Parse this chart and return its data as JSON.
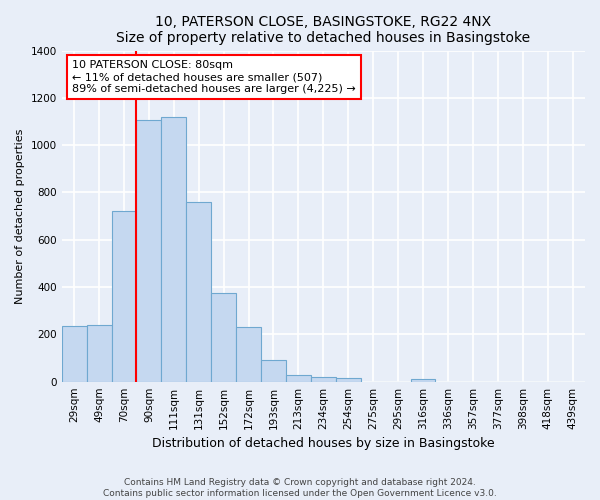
{
  "title": "10, PATERSON CLOSE, BASINGSTOKE, RG22 4NX",
  "subtitle": "Size of property relative to detached houses in Basingstoke",
  "xlabel": "Distribution of detached houses by size in Basingstoke",
  "ylabel": "Number of detached properties",
  "bar_labels": [
    "29sqm",
    "49sqm",
    "70sqm",
    "90sqm",
    "111sqm",
    "131sqm",
    "152sqm",
    "172sqm",
    "193sqm",
    "213sqm",
    "234sqm",
    "254sqm",
    "275sqm",
    "295sqm",
    "316sqm",
    "336sqm",
    "357sqm",
    "377sqm",
    "398sqm",
    "418sqm",
    "439sqm"
  ],
  "bar_values": [
    235,
    240,
    720,
    1105,
    1120,
    760,
    375,
    230,
    90,
    30,
    20,
    15,
    0,
    0,
    10,
    0,
    0,
    0,
    0,
    0,
    0
  ],
  "bar_color": "#c5d8f0",
  "bar_edge_color": "#6fa8d0",
  "vline_color": "red",
  "ylim": [
    0,
    1400
  ],
  "yticks": [
    0,
    200,
    400,
    600,
    800,
    1000,
    1200,
    1400
  ],
  "annotation_title": "10 PATERSON CLOSE: 80sqm",
  "annotation_line1": "← 11% of detached houses are smaller (507)",
  "annotation_line2": "89% of semi-detached houses are larger (4,225) →",
  "annotation_box_color": "white",
  "annotation_box_edgecolor": "red",
  "footer_line1": "Contains HM Land Registry data © Crown copyright and database right 2024.",
  "footer_line2": "Contains public sector information licensed under the Open Government Licence v3.0.",
  "background_color": "#e8eef8",
  "plot_background": "#e8eef8",
  "grid_color": "white",
  "title_fontsize": 10,
  "xlabel_fontsize": 9,
  "ylabel_fontsize": 8,
  "tick_fontsize": 7.5,
  "footer_fontsize": 6.5
}
